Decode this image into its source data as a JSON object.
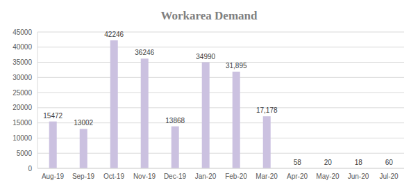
{
  "chart_data": {
    "type": "bar",
    "title": "Workarea Demand",
    "categories": [
      "Aug-19",
      "Sep-19",
      "Oct-19",
      "Nov-19",
      "Dec-19",
      "Jan-20",
      "Feb-20",
      "Mar-20",
      "Apr-20",
      "May-20",
      "Jun-20",
      "Jul-20"
    ],
    "values": [
      15472,
      13002,
      42246,
      36246,
      13868,
      34990,
      31895,
      17178,
      58,
      20,
      18,
      60
    ],
    "value_labels": [
      "15472",
      "13002",
      "42246",
      "36246",
      "13868",
      "34990",
      "31,895",
      "17,178",
      "58",
      "20",
      "18",
      "60"
    ],
    "color": "#cbc1e0",
    "ylim": [
      0,
      45000
    ],
    "yticks": [
      0,
      5000,
      10000,
      15000,
      20000,
      25000,
      30000,
      35000,
      40000,
      45000
    ],
    "grid": true,
    "data_labels": true
  }
}
